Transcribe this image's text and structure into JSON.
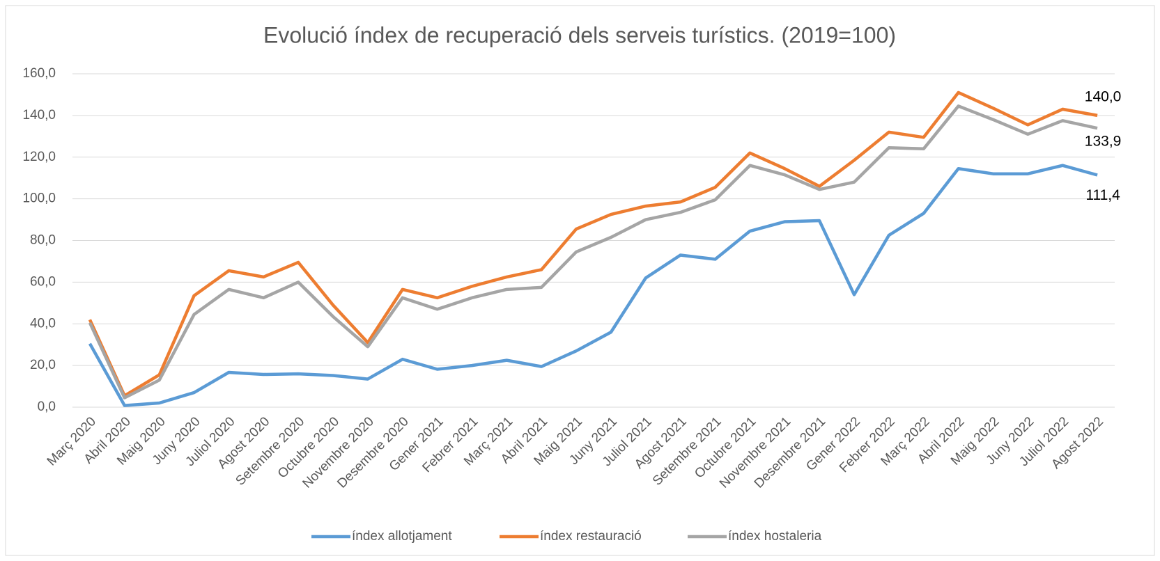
{
  "chart_data": {
    "type": "line",
    "title": "Evolució índex de recuperació dels serveis turístics. (2019=100)",
    "categories": [
      "Març 2020",
      "Abril 2020",
      "Maig 2020",
      "Juny 2020",
      "Juliol 2020",
      "Agost 2020",
      "Setembre 2020",
      "Octubre 2020",
      "Novembre 2020",
      "Desembre 2020",
      "Gener 2021",
      "Febrer 2021",
      "Març 2021",
      "Abril 2021",
      "Maig 2021",
      "Juny 2021",
      "Juliol 2021",
      "Agost 2021",
      "Setembre 2021",
      "Octubre 2021",
      "Novembre 2021",
      "Desembre 2021",
      "Gener 2022",
      "Febrer 2022",
      "Març 2022",
      "Abril 2022",
      "Maig 2022",
      "Juny 2022",
      "Juliol 2022",
      "Agost 2022"
    ],
    "series": [
      {
        "name": "índex allotjament",
        "color": "#5b9bd5",
        "values": [
          30.5,
          0.8,
          2.0,
          7.0,
          16.7,
          15.7,
          16.0,
          15.2,
          13.5,
          23.0,
          18.2,
          20.0,
          22.5,
          19.5,
          27.0,
          36.0,
          62.0,
          73.0,
          71.0,
          84.5,
          89.0,
          89.5,
          54.0,
          82.5,
          93.0,
          114.5,
          112.0,
          112.0,
          116.0,
          111.4
        ],
        "value_labels": [
          null,
          null,
          null,
          null,
          null,
          null,
          null,
          null,
          null,
          null,
          null,
          null,
          null,
          null,
          null,
          null,
          null,
          null,
          null,
          null,
          null,
          null,
          null,
          null,
          null,
          null,
          null,
          null,
          null,
          "111,4"
        ]
      },
      {
        "name": "índex restauració",
        "color": "#ed7d31",
        "values": [
          42.0,
          5.5,
          15.5,
          53.5,
          65.5,
          62.5,
          69.5,
          49.0,
          31.0,
          56.5,
          52.5,
          58.0,
          62.5,
          66.0,
          85.5,
          92.5,
          96.5,
          98.5,
          105.5,
          122.0,
          114.5,
          106.0,
          118.5,
          132.0,
          129.5,
          151.0,
          143.5,
          135.5,
          143.0,
          140.0
        ],
        "value_labels": [
          null,
          null,
          null,
          null,
          null,
          null,
          null,
          null,
          null,
          null,
          null,
          null,
          null,
          null,
          null,
          null,
          null,
          null,
          null,
          null,
          null,
          null,
          null,
          null,
          null,
          null,
          null,
          null,
          null,
          "140,0"
        ]
      },
      {
        "name": "índex hostaleria",
        "color": "#a5a5a5",
        "values": [
          40.5,
          4.5,
          13.0,
          44.5,
          56.5,
          52.5,
          60.0,
          43.5,
          29.0,
          52.5,
          47.0,
          52.5,
          56.5,
          57.5,
          74.5,
          81.5,
          90.0,
          93.5,
          99.5,
          116.0,
          111.5,
          104.5,
          108.0,
          124.5,
          124.0,
          144.5,
          138.0,
          131.0,
          137.5,
          133.9
        ],
        "value_labels": [
          null,
          null,
          null,
          null,
          null,
          null,
          null,
          null,
          null,
          null,
          null,
          null,
          null,
          null,
          null,
          null,
          null,
          null,
          null,
          null,
          null,
          null,
          null,
          null,
          null,
          null,
          null,
          null,
          null,
          "133,9"
        ]
      }
    ],
    "ylim": [
      0,
      160
    ],
    "yticks": [
      {
        "value": 0,
        "label": "0,0"
      },
      {
        "value": 20,
        "label": "20,0"
      },
      {
        "value": 40,
        "label": "40,0"
      },
      {
        "value": 60,
        "label": "60,0"
      },
      {
        "value": 80,
        "label": "80,0"
      },
      {
        "value": 100,
        "label": "100,0"
      },
      {
        "value": 120,
        "label": "120,0"
      },
      {
        "value": 140,
        "label": "140,0"
      },
      {
        "value": 160,
        "label": "160,0"
      }
    ],
    "grid": true,
    "legend": "bottom"
  }
}
